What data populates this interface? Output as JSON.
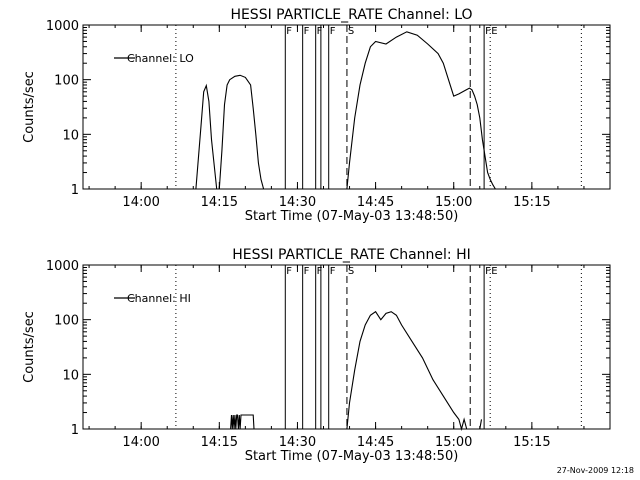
{
  "footer_timestamp": "27-Nov-2009 12:18",
  "chart_data": [
    {
      "type": "line",
      "title": "HESSI PARTICLE_RATE Channel: LO",
      "xlabel": "Start Time (07-May-03 13:48:50)",
      "ylabel": "Counts/sec",
      "y_scale": "log",
      "ylim": [
        1,
        1000
      ],
      "y_ticks": [
        {
          "value": 1,
          "label": "1"
        },
        {
          "value": 10,
          "label": "10"
        },
        {
          "value": 100,
          "label": "100"
        },
        {
          "value": 1000,
          "label": "1000"
        }
      ],
      "x_ticks": [
        "14:00",
        "14:15",
        "14:30",
        "14:45",
        "15:00",
        "15:15"
      ],
      "legend": {
        "label": "Channel: LO",
        "position": "top-left"
      },
      "series": [
        {
          "x": [
            "14:10:30",
            "14:11:30",
            "14:12:00",
            "14:12:30",
            "14:13:00",
            "14:13:30",
            "14:14:30",
            "14:15:00",
            "14:15:30",
            "14:16:00",
            "14:16:30",
            "14:17:00",
            "14:18:00",
            "14:19:00",
            "14:20:00",
            "14:21:00",
            "14:21:30",
            "14:22:00",
            "14:22:30",
            "14:23:00",
            "14:23:30"
          ],
          "y": [
            1,
            15,
            60,
            78,
            40,
            8,
            1,
            1,
            5,
            35,
            80,
            100,
            115,
            120,
            110,
            80,
            30,
            10,
            3,
            1.5,
            1
          ]
        },
        {
          "x": [
            "14:39:30",
            "14:40:00",
            "14:41:00",
            "14:42:00",
            "14:43:00",
            "14:44:00",
            "14:45:00",
            "14:47:00",
            "14:49:00",
            "14:51:00",
            "14:53:00",
            "14:55:00",
            "14:57:00",
            "14:58:00",
            "14:59:00",
            "15:00:00",
            "15:01:00",
            "15:02:00",
            "15:03:00",
            "15:03:30",
            "15:04:00",
            "15:04:30",
            "15:05:00",
            "15:05:30",
            "15:06:00",
            "15:06:30",
            "15:07:00",
            "15:07:30",
            "15:08:00"
          ],
          "y": [
            1,
            3,
            20,
            80,
            200,
            400,
            500,
            450,
            600,
            750,
            650,
            450,
            300,
            200,
            100,
            50,
            55,
            62,
            70,
            65,
            50,
            35,
            20,
            8,
            4,
            2,
            1.5,
            1.2,
            1
          ]
        }
      ],
      "markers": [
        {
          "time": "14:06:40",
          "style": "dotted",
          "label": ""
        },
        {
          "time": "14:27:40",
          "style": "solid",
          "label": "F"
        },
        {
          "time": "14:31:00",
          "style": "solid",
          "label": "F"
        },
        {
          "time": "14:33:30",
          "style": "solid",
          "label": "F"
        },
        {
          "time": "14:34:30",
          "style": "solid",
          "label": ""
        },
        {
          "time": "14:36:00",
          "style": "solid",
          "label": "F"
        },
        {
          "time": "14:39:30",
          "style": "dashed",
          "label": "S"
        },
        {
          "time": "15:03:10",
          "style": "dashed",
          "label": ""
        },
        {
          "time": "15:05:50",
          "style": "solid",
          "label": "F"
        },
        {
          "time": "15:07:00",
          "style": "dotted",
          "label": "E"
        },
        {
          "time": "15:24:30",
          "style": "dotted",
          "label": ""
        }
      ]
    },
    {
      "type": "line",
      "title": "HESSI PARTICLE_RATE Channel: HI",
      "xlabel": "Start Time (07-May-03 13:48:50)",
      "ylabel": "Counts/sec",
      "y_scale": "log",
      "ylim": [
        1,
        1000
      ],
      "y_ticks": [
        {
          "value": 1,
          "label": "1"
        },
        {
          "value": 10,
          "label": "10"
        },
        {
          "value": 100,
          "label": "100"
        },
        {
          "value": 1000,
          "label": "1000"
        }
      ],
      "x_ticks": [
        "14:00",
        "14:15",
        "14:30",
        "14:45",
        "15:00",
        "15:15"
      ],
      "legend": {
        "label": "Channel: HI",
        "position": "top-left"
      },
      "series": [
        {
          "x": [
            "14:17:10",
            "14:17:20",
            "14:17:30",
            "14:17:40",
            "14:17:50",
            "14:18:00",
            "14:18:10",
            "14:18:20",
            "14:18:30",
            "14:18:40",
            "14:18:50",
            "14:19:00",
            "14:19:10",
            "14:19:20",
            "14:19:30",
            "14:21:30",
            "14:21:40"
          ],
          "y": [
            1,
            1.8,
            1,
            1.8,
            1,
            1.8,
            1,
            1.8,
            1.8,
            1,
            1.8,
            1,
            1.8,
            1.8,
            1.8,
            1.8,
            1
          ]
        },
        {
          "x": [
            "14:39:30",
            "14:40:00",
            "14:41:00",
            "14:42:00",
            "14:43:00",
            "14:44:00",
            "14:45:00",
            "14:46:00",
            "14:47:00",
            "14:48:00",
            "14:49:00",
            "14:50:00",
            "14:52:00",
            "14:54:00",
            "14:56:00",
            "14:58:00",
            "15:00:00",
            "15:01:00",
            "15:01:30",
            "15:02:00",
            "15:02:30",
            "15:05:00",
            "15:05:20"
          ],
          "y": [
            1,
            3,
            12,
            40,
            80,
            120,
            140,
            100,
            130,
            140,
            120,
            80,
            40,
            20,
            8,
            4,
            2,
            1.5,
            1,
            1.5,
            1,
            1,
            1.5
          ]
        }
      ],
      "markers": [
        {
          "time": "14:06:40",
          "style": "dotted",
          "label": ""
        },
        {
          "time": "14:27:40",
          "style": "solid",
          "label": "F"
        },
        {
          "time": "14:31:00",
          "style": "solid",
          "label": "F"
        },
        {
          "time": "14:33:30",
          "style": "solid",
          "label": "F"
        },
        {
          "time": "14:34:30",
          "style": "solid",
          "label": ""
        },
        {
          "time": "14:36:00",
          "style": "solid",
          "label": "F"
        },
        {
          "time": "14:39:30",
          "style": "dashed",
          "label": "S"
        },
        {
          "time": "15:03:10",
          "style": "dashed",
          "label": ""
        },
        {
          "time": "15:05:50",
          "style": "solid",
          "label": "F"
        },
        {
          "time": "15:07:00",
          "style": "dotted",
          "label": "E"
        },
        {
          "time": "15:24:30",
          "style": "dotted",
          "label": ""
        }
      ]
    }
  ]
}
